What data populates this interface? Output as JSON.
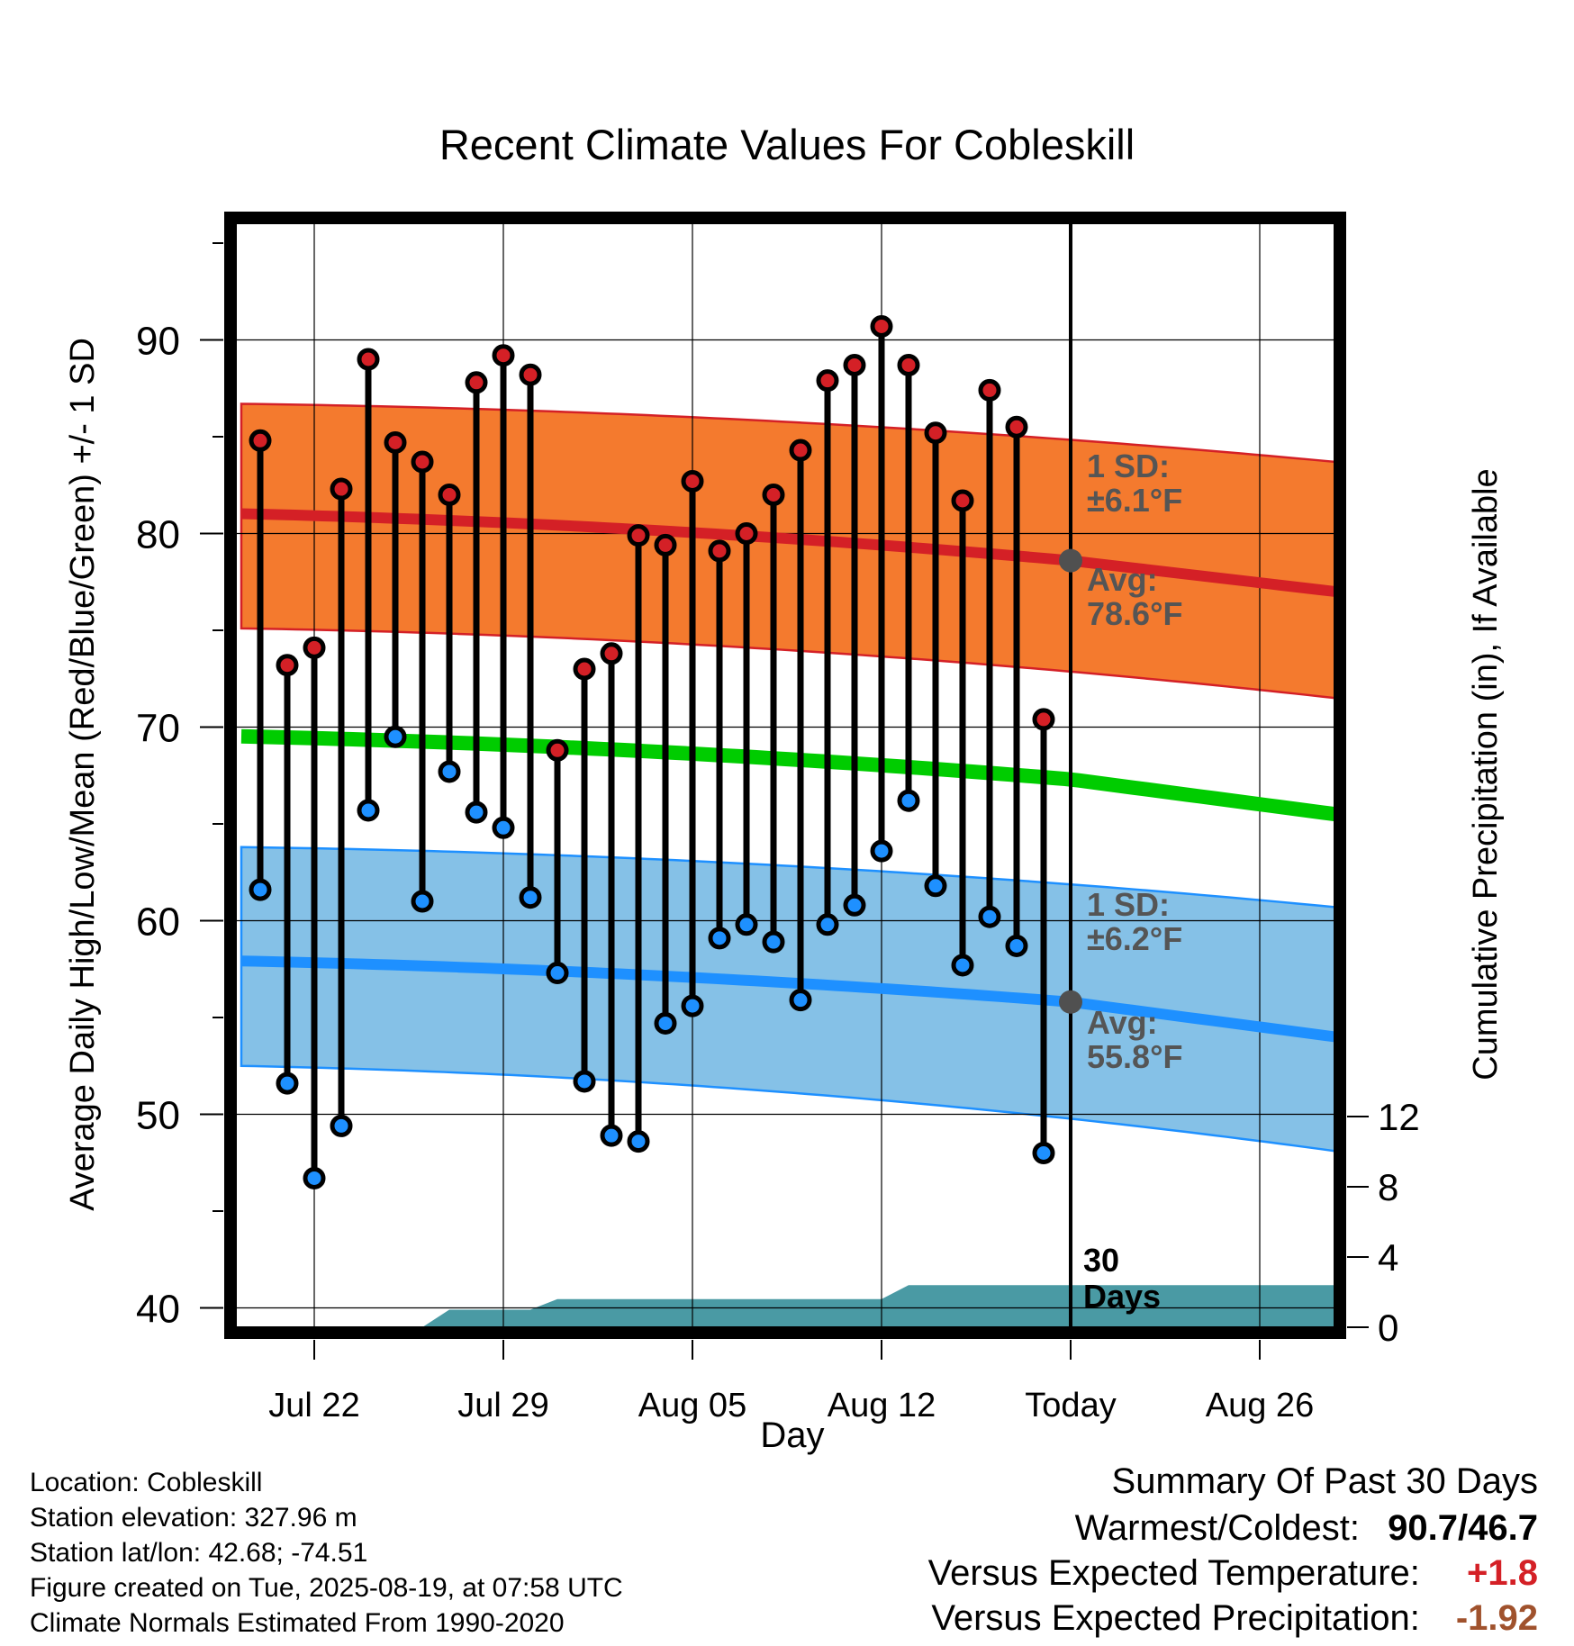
{
  "chart_data": {
    "type": "line",
    "title": "Recent Climate Values For Cobleskill",
    "xlabel": "Day",
    "ylabel": "Average Daily High/Low/Mean (Red/Blue/Green) +/- 1 SD",
    "y2label": "Cumulative Precipitation (in), If Available",
    "ylim": [
      39,
      96
    ],
    "y2lim": [
      0,
      24
    ],
    "y_ticks": [
      40,
      50,
      60,
      70,
      80,
      90
    ],
    "y2_ticks": [
      0,
      4,
      8,
      12
    ],
    "x_ticks": [
      {
        "day": 2,
        "label": "Jul 22"
      },
      {
        "day": 9,
        "label": "Jul 29"
      },
      {
        "day": 16,
        "label": "Aug 05"
      },
      {
        "day": 23,
        "label": "Aug 12"
      },
      {
        "day": 30,
        "label": "Today"
      },
      {
        "day": 37,
        "label": "Aug 26"
      }
    ],
    "x_range_days": [
      -0.7,
      39.8
    ],
    "observed_highs": [
      84.8,
      73.2,
      74.1,
      82.3,
      89.0,
      84.7,
      83.7,
      82.0,
      87.8,
      89.2,
      88.2,
      68.8,
      73.0,
      73.8,
      79.9,
      79.4,
      82.7,
      79.1,
      80.0,
      82.0,
      84.3,
      87.9,
      88.7,
      90.7,
      88.7,
      85.2,
      81.7,
      87.4,
      85.5,
      70.4
    ],
    "observed_lows": [
      61.6,
      51.6,
      46.7,
      49.4,
      65.7,
      69.5,
      61.0,
      67.7,
      65.6,
      64.8,
      61.2,
      57.3,
      51.7,
      48.9,
      48.6,
      54.7,
      55.6,
      59.1,
      59.8,
      58.9,
      55.9,
      59.8,
      60.8,
      63.6,
      66.2,
      61.8,
      57.7,
      60.2,
      58.7,
      48.0
    ],
    "normal_high": {
      "day0": 81.0,
      "today": 78.6,
      "end": 77.0
    },
    "normal_low": {
      "day0": 57.9,
      "today": 55.8,
      "end": 54.0
    },
    "normal_mean": {
      "day0": 69.5,
      "today": 67.3,
      "end": 65.5
    },
    "high_band": {
      "upper_day0": 86.7,
      "upper_end": 83.7,
      "lower_day0": 75.1,
      "lower_end": 71.5
    },
    "low_band": {
      "upper_day0": 63.8,
      "upper_end": 60.7,
      "lower_day0": 52.5,
      "lower_end": 48.1
    },
    "cumulative_precipitation": {
      "days": [
        6,
        7,
        10,
        11,
        12,
        23,
        24,
        39.8
      ],
      "values": [
        0,
        1.0,
        1.0,
        1.6,
        1.6,
        1.6,
        2.4,
        2.4
      ]
    },
    "precip_label": [
      "30",
      "Days"
    ],
    "annotations": {
      "high_sd": [
        "1 SD:",
        "±6.1°F"
      ],
      "high_avg": [
        "Avg:",
        "78.6°F"
      ],
      "low_sd": [
        "1 SD:",
        "±6.2°F"
      ],
      "low_avg": [
        "Avg:",
        "55.8°F"
      ]
    },
    "colors": {
      "high_band": "#f47a2e",
      "high_line": "#d42026",
      "low_band": "#85c1e7",
      "low_line": "#1e90ff",
      "mean_line": "#00cc00",
      "precip": "#4a9aa4",
      "high_point": "#d42026",
      "low_point": "#1e90ff",
      "annotation": "#555555",
      "avg_dot": "#505050"
    }
  },
  "footer": [
    "Location: Cobleskill",
    "Station elevation: 327.96 m",
    "Station lat/lon: 42.68; -74.51",
    "Figure created on Tue, 2025-08-19, at 07:58 UTC",
    "Climate Normals Estimated From 1990-2020"
  ],
  "summary": {
    "title": "Summary Of Past 30 Days",
    "warm_cold_label": "Warmest/Coldest:",
    "warmest": "90.7",
    "coldest": "46.7",
    "temp_label": "Versus Expected Temperature:",
    "temp_value": "+1.8",
    "temp_color": "#d42026",
    "precip_label": "Versus Expected Precipitation:",
    "precip_value": "-1.92",
    "precip_color": "#a0522d"
  }
}
